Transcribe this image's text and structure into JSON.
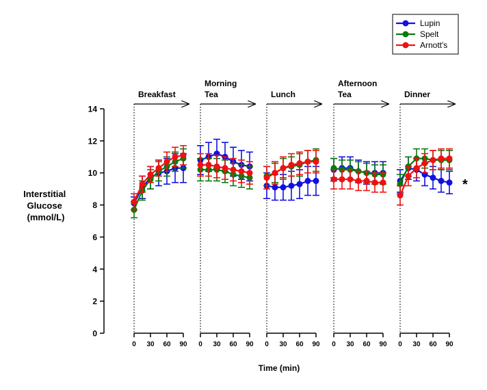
{
  "chart_data": {
    "type": "line",
    "ylabel_lines": [
      "Interstitial",
      "Glucose",
      "(mmol/L)"
    ],
    "xlabel": "Time (min)",
    "ylim": [
      0,
      14
    ],
    "y_ticks": [
      "0",
      "2",
      "4",
      "6",
      "8",
      "10",
      "12",
      "14"
    ],
    "x_tick_labels": [
      "0",
      "30",
      "60",
      "90"
    ],
    "significance_marker": "*",
    "meals": [
      {
        "label_lines": [
          "Breakfast"
        ]
      },
      {
        "label_lines": [
          "Morning",
          "Tea"
        ]
      },
      {
        "label_lines": [
          "Lunch"
        ]
      },
      {
        "label_lines": [
          "Afternoon",
          "Tea"
        ]
      },
      {
        "label_lines": [
          "Dinner"
        ]
      }
    ],
    "x_minutes": [
      0,
      15,
      30,
      45,
      60,
      75,
      90
    ],
    "series": [
      {
        "name": "Lupin",
        "color": "#1010e0",
        "values": [
          [
            8.1,
            9.1,
            9.7,
            10.0,
            10.1,
            10.3,
            10.3
          ],
          [
            10.8,
            11.0,
            11.2,
            11.0,
            10.7,
            10.5,
            10.4
          ],
          [
            9.2,
            9.1,
            9.1,
            9.2,
            9.3,
            9.5,
            9.5
          ],
          [
            10.2,
            10.3,
            10.3,
            10.1,
            10.0,
            10.0,
            10.0
          ],
          [
            9.5,
            10.3,
            10.2,
            9.9,
            9.7,
            9.5,
            9.4
          ]
        ],
        "errors": [
          [
            0.4,
            0.7,
            0.7,
            0.8,
            0.8,
            0.9,
            0.9
          ],
          [
            0.9,
            0.9,
            0.9,
            0.9,
            0.9,
            0.9,
            0.9
          ],
          [
            0.8,
            0.8,
            0.8,
            0.9,
            0.9,
            0.9,
            0.9
          ],
          [
            0.7,
            0.7,
            0.7,
            0.7,
            0.7,
            0.7,
            0.7
          ],
          [
            0.7,
            0.7,
            0.7,
            0.7,
            0.7,
            0.7,
            0.7
          ]
        ]
      },
      {
        "name": "Spelt",
        "color": "#0a7a0a",
        "values": [
          [
            7.7,
            8.9,
            9.6,
            10.1,
            10.4,
            10.7,
            10.9
          ],
          [
            10.2,
            10.2,
            10.2,
            10.1,
            9.9,
            9.8,
            9.7
          ],
          [
            9.8,
            10.0,
            10.3,
            10.4,
            10.5,
            10.7,
            10.8
          ],
          [
            10.3,
            10.2,
            10.2,
            10.1,
            10.0,
            9.9,
            9.9
          ],
          [
            9.3,
            10.4,
            10.9,
            10.9,
            10.8,
            10.8,
            10.8
          ]
        ],
        "errors": [
          [
            0.5,
            0.6,
            0.6,
            0.6,
            0.6,
            0.6,
            0.6
          ],
          [
            0.7,
            0.7,
            0.7,
            0.7,
            0.7,
            0.7,
            0.7
          ],
          [
            0.6,
            0.6,
            0.6,
            0.6,
            0.7,
            0.7,
            0.7
          ],
          [
            0.6,
            0.6,
            0.6,
            0.6,
            0.6,
            0.6,
            0.6
          ],
          [
            0.6,
            0.6,
            0.6,
            0.6,
            0.6,
            0.6,
            0.6
          ]
        ]
      },
      {
        "name": "Arnott's",
        "color": "#ee1111",
        "values": [
          [
            8.2,
            9.3,
            9.9,
            10.3,
            10.7,
            11.0,
            11.1
          ],
          [
            10.5,
            10.5,
            10.4,
            10.3,
            10.2,
            10.1,
            10.0
          ],
          [
            9.7,
            10.0,
            10.3,
            10.5,
            10.6,
            10.7,
            10.7
          ],
          [
            9.6,
            9.6,
            9.6,
            9.5,
            9.5,
            9.4,
            9.4
          ],
          [
            8.6,
            9.8,
            10.3,
            10.6,
            10.8,
            10.9,
            10.9
          ]
        ],
        "errors": [
          [
            0.5,
            0.5,
            0.5,
            0.5,
            0.6,
            0.6,
            0.6
          ],
          [
            0.7,
            0.7,
            0.7,
            0.7,
            0.7,
            0.7,
            0.7
          ],
          [
            0.7,
            0.7,
            0.7,
            0.7,
            0.7,
            0.7,
            0.7
          ],
          [
            0.6,
            0.6,
            0.6,
            0.6,
            0.6,
            0.6,
            0.6
          ],
          [
            0.6,
            0.6,
            0.6,
            0.6,
            0.6,
            0.6,
            0.6
          ]
        ]
      }
    ],
    "legend_position": "top-right",
    "grid": false
  }
}
